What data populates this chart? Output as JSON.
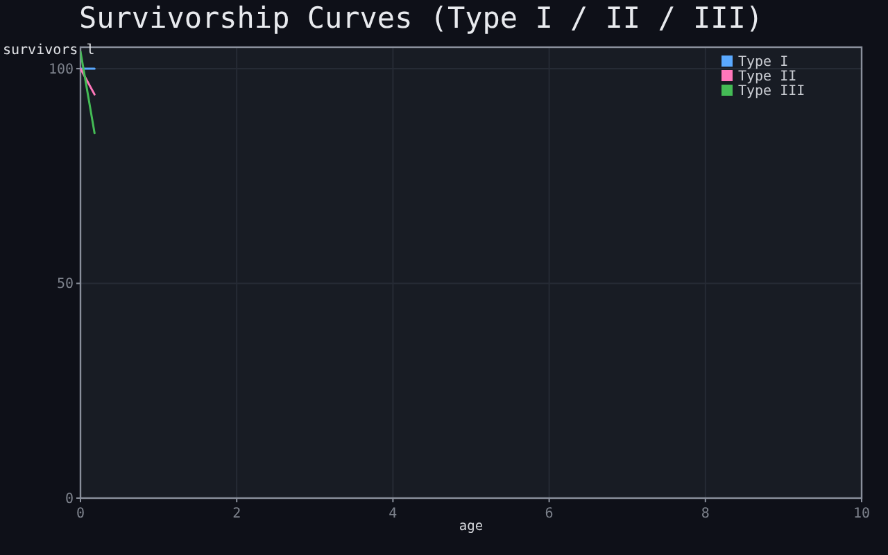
{
  "chart_data": {
    "type": "line",
    "title": "Survivorship Curves (Type I / II / III)",
    "xlabel": "age",
    "ylabel": "survivors l",
    "xlim": [
      0,
      10
    ],
    "xticks": [
      0,
      2,
      4,
      6,
      8,
      10
    ],
    "ylim": [
      0,
      105
    ],
    "yticks": [
      0,
      50,
      100
    ],
    "grid": true,
    "legend": "top right",
    "series": [
      {
        "name": "Type I",
        "color": "#5aa9ff",
        "x": [
          0,
          0.18
        ],
        "values": [
          100,
          100
        ]
      },
      {
        "name": "Type II",
        "color": "#ff77bb",
        "x": [
          0,
          0.18
        ],
        "values": [
          100,
          94
        ]
      },
      {
        "name": "Type III",
        "color": "#44bb55",
        "x": [
          0,
          0.09,
          0.18
        ],
        "values": [
          104,
          94.5,
          85
        ]
      }
    ]
  }
}
